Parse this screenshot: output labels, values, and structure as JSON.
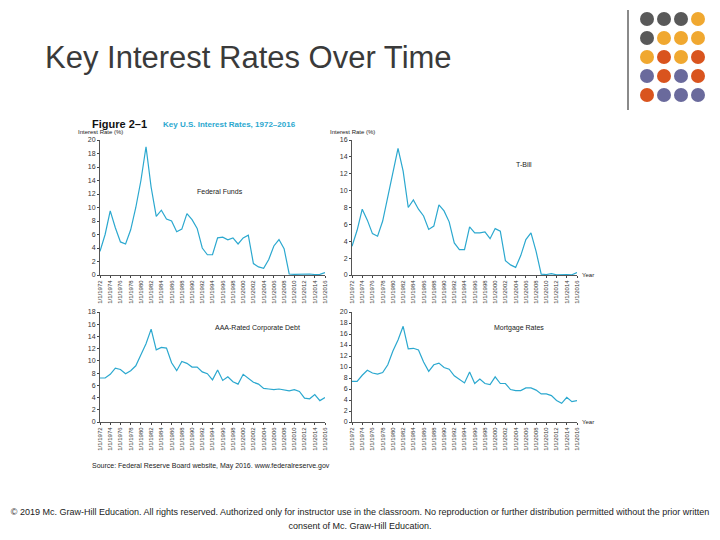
{
  "slide": {
    "title": "Key Interest Rates Over Time",
    "figure_label": "Figure 2–1",
    "figure_title": "Key U.S. Interest Rates, 1972–2016",
    "source": "Source: Federal Reserve Board website, May 2016. www.federalreserve.gov",
    "copyright": "© 2019 Mc. Graw-Hill Education. All rights reserved. Authorized only for instructor use in the classroom. No reproduction or further distribution permitted without the prior written consent of Mc. Graw-Hill Education."
  },
  "chart_data": [
    {
      "type": "line",
      "title": "Federal Funds",
      "y_label": "Interest Rate (%)",
      "color": "#2ba8cf",
      "grid": false,
      "ylim": [
        0,
        20
      ],
      "yticks": [
        0,
        2,
        4,
        6,
        8,
        10,
        12,
        14,
        16,
        18,
        20
      ],
      "categories": [
        "1/1/1972",
        null,
        "1/1/1974",
        null,
        "1/1/1976",
        null,
        "1/1/1978",
        null,
        "1/1/1980",
        null,
        "1/1/1982",
        null,
        "1/1/1984",
        null,
        "1/1/1986",
        null,
        "1/1/1988",
        null,
        "1/1/1990",
        null,
        "1/1/1992",
        null,
        "1/1/1994",
        null,
        "1/1/1996",
        null,
        "1/1/1998",
        null,
        "1/1/2000",
        null,
        "1/1/2002",
        null,
        "1/1/2004",
        null,
        "1/1/2006",
        null,
        "1/1/2008",
        null,
        "1/1/2010",
        null,
        "1/1/2012",
        null,
        "1/1/2014",
        null,
        "1/1/2016"
      ],
      "values": [
        3.5,
        6,
        9.5,
        7,
        4.9,
        4.6,
        6.7,
        10,
        14,
        19,
        13,
        8.7,
        9.6,
        8.3,
        8,
        6.4,
        6.8,
        9.1,
        8.2,
        6.9,
        4,
        3,
        3,
        5.5,
        5.6,
        5.2,
        5.5,
        4.6,
        5.5,
        5.9,
        1.7,
        1.2,
        1,
        2.3,
        4.3,
        5.25,
        3.9,
        0.15,
        0.1,
        0.15,
        0.1,
        0.15,
        0.07,
        0.1,
        0.35
      ]
    },
    {
      "type": "line",
      "title": "T-Bill",
      "y_label": "Interest Rate (%)",
      "x_label": "Year",
      "color": "#2ba8cf",
      "grid": false,
      "ylim": [
        0,
        16
      ],
      "yticks": [
        0,
        2,
        4,
        6,
        8,
        10,
        12,
        14,
        16
      ],
      "categories": [
        "1/1/1972",
        null,
        "1/1/1974",
        null,
        "1/1/1976",
        null,
        "1/1/1978",
        null,
        "1/1/1980",
        null,
        "1/1/1982",
        null,
        "1/1/1984",
        null,
        "1/1/1986",
        null,
        "1/1/1988",
        null,
        "1/1/1990",
        null,
        "1/1/1992",
        null,
        "1/1/1994",
        null,
        "1/1/1996",
        null,
        "1/1/1998",
        null,
        "1/1/2000",
        null,
        "1/1/2002",
        null,
        "1/1/2004",
        null,
        "1/1/2006",
        null,
        "1/1/2008",
        null,
        "1/1/2010",
        null,
        "1/1/2012",
        null,
        "1/1/2014",
        null,
        "1/1/2016"
      ],
      "values": [
        3.4,
        5.3,
        7.8,
        6.5,
        4.9,
        4.6,
        6.4,
        9.4,
        12,
        15,
        12.3,
        8,
        8.9,
        7.8,
        7,
        5.4,
        5.8,
        8.3,
        7.6,
        6.3,
        3.8,
        3,
        3,
        5.7,
        5,
        5,
        5.1,
        4.3,
        5.5,
        5.2,
        1.7,
        1.2,
        0.9,
        2.3,
        4.2,
        5,
        2.8,
        0.1,
        0.06,
        0.15,
        0.03,
        0.07,
        0.04,
        0.03,
        0.3
      ]
    },
    {
      "type": "line",
      "title": "AAA-Rated Corporate Debt",
      "color": "#2ba8cf",
      "grid": false,
      "ylim": [
        0,
        18
      ],
      "yticks": [
        0,
        2,
        4,
        6,
        8,
        10,
        12,
        14,
        16,
        18
      ],
      "categories": [
        "1/1/1972",
        null,
        "1/1/1974",
        null,
        "1/1/1976",
        null,
        "1/1/1978",
        null,
        "1/1/1980",
        null,
        "1/1/1982",
        null,
        "1/1/1984",
        null,
        "1/1/1986",
        null,
        "1/1/1988",
        null,
        "1/1/1990",
        null,
        "1/1/1992",
        null,
        "1/1/1994",
        null,
        "1/1/1996",
        null,
        "1/1/1998",
        null,
        "1/1/2000",
        null,
        "1/1/2002",
        null,
        "1/1/2004",
        null,
        "1/1/2006",
        null,
        "1/1/2008",
        null,
        "1/1/2010",
        null,
        "1/1/2012",
        null,
        "1/1/2014",
        null,
        "1/1/2016"
      ],
      "values": [
        7.2,
        7.2,
        7.8,
        8.8,
        8.6,
        7.9,
        8.4,
        9.2,
        11,
        12.8,
        15.2,
        11.8,
        12.2,
        12.1,
        9.7,
        8.4,
        9.9,
        9.6,
        8.99,
        9,
        8.2,
        7.9,
        6.9,
        8.5,
        6.8,
        7.4,
        6.6,
        6.2,
        7.8,
        7.1,
        6.5,
        6.2,
        5.5,
        5.4,
        5.3,
        5.4,
        5.3,
        5.1,
        5.3,
        5,
        3.9,
        3.8,
        4.5,
        3.5,
        4
      ]
    },
    {
      "type": "line",
      "title": "Mortgage Rates",
      "x_label": "Year",
      "color": "#2ba8cf",
      "grid": false,
      "ylim": [
        0,
        20
      ],
      "yticks": [
        0,
        2,
        4,
        6,
        8,
        10,
        12,
        14,
        16,
        18,
        20
      ],
      "categories": [
        "1/1/1972",
        null,
        "1/1/1974",
        null,
        "1/1/1976",
        null,
        "1/1/1978",
        null,
        "1/1/1980",
        null,
        "1/1/1982",
        null,
        "1/1/1984",
        null,
        "1/1/1986",
        null,
        "1/1/1988",
        null,
        "1/1/1990",
        null,
        "1/1/1992",
        null,
        "1/1/1994",
        null,
        "1/1/1996",
        null,
        "1/1/1998",
        null,
        "1/1/2000",
        null,
        "1/1/2002",
        null,
        "1/1/2004",
        null,
        "1/1/2006",
        null,
        "1/1/2008",
        null,
        "1/1/2010",
        null,
        "1/1/2012",
        null,
        "1/1/2014",
        null,
        "1/1/2016"
      ],
      "values": [
        7.4,
        7.4,
        8.5,
        9.4,
        8.9,
        8.7,
        9,
        10.4,
        12.9,
        14.9,
        17.4,
        13.3,
        13.4,
        13.1,
        10.9,
        9.2,
        10.4,
        10.7,
        9.9,
        9.6,
        8.4,
        7.7,
        7.1,
        9.1,
        7,
        7.8,
        7,
        6.8,
        8.2,
        7,
        7,
        5.9,
        5.7,
        5.7,
        6.2,
        6.2,
        5.8,
        5.1,
        5.1,
        4.8,
        3.9,
        3.4,
        4.5,
        3.7,
        3.9
      ]
    }
  ]
}
